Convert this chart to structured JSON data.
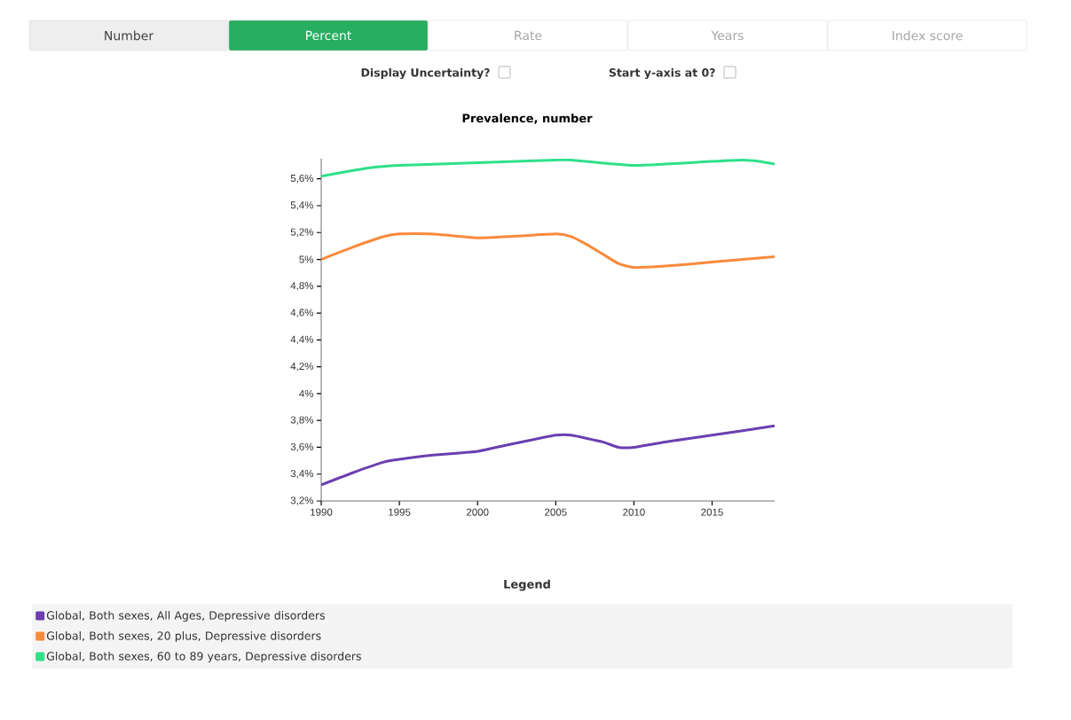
{
  "chart_data": {
    "type": "line",
    "title": "Prevalence, number",
    "legend_title": "Legend",
    "legend": "bottom",
    "annotations": [
      "Number",
      "Percent",
      "Rate",
      "Years",
      "Index score",
      "Display Uncertainty?",
      "Start y-axis at 0?"
    ],
    "xlim": [
      1990,
      2019
    ],
    "ylim": [
      3.2,
      5.75
    ],
    "xticks": [
      1990,
      1995,
      2000,
      2005,
      2010,
      2015
    ],
    "yticks": [
      {
        "value": 3.2,
        "label": "3,2%"
      },
      {
        "value": 3.4,
        "label": "3,4%"
      },
      {
        "value": 3.6,
        "label": "3,6%"
      },
      {
        "value": 3.8,
        "label": "3,8%"
      },
      {
        "value": 4.0,
        "label": "4%"
      },
      {
        "value": 4.2,
        "label": "4,2%"
      },
      {
        "value": 4.4,
        "label": "4,4%"
      },
      {
        "value": 4.6,
        "label": "4,6%"
      },
      {
        "value": 4.8,
        "label": "4,8%"
      },
      {
        "value": 5.0,
        "label": "5%"
      },
      {
        "value": 5.2,
        "label": "5,2%"
      },
      {
        "value": 5.4,
        "label": "5,4%"
      },
      {
        "value": 5.6,
        "label": "5,6%"
      }
    ],
    "series": [
      {
        "name": "Global, Both sexes, All Ages, Depressive disorders",
        "color": "#6a3fb0",
        "x": [
          1990,
          1992,
          1994,
          1995,
          1997,
          2000,
          2002,
          2005,
          2006,
          2008,
          2009,
          2010,
          2012,
          2015,
          2019
        ],
        "values": [
          3.32,
          3.41,
          3.49,
          3.51,
          3.54,
          3.57,
          3.62,
          3.69,
          3.69,
          3.64,
          3.6,
          3.6,
          3.64,
          3.69,
          3.76
        ]
      },
      {
        "name": "Global, Both sexes, 20 plus, Depressive disorders",
        "color": "#f98a3c",
        "x": [
          1990,
          1992,
          1994,
          1995,
          1997,
          1999,
          2000,
          2002,
          2005,
          2006,
          2007,
          2008,
          2009,
          2010,
          2012,
          2015,
          2017,
          2019
        ],
        "values": [
          5.0,
          5.09,
          5.17,
          5.19,
          5.19,
          5.17,
          5.16,
          5.17,
          5.19,
          5.17,
          5.11,
          5.04,
          4.97,
          4.94,
          4.95,
          4.98,
          5.0,
          5.02
        ]
      },
      {
        "name": "Global, Both sexes, 60 to 89 years, Depressive disorders",
        "color": "#2fe08a",
        "x": [
          1990,
          1993,
          1995,
          2000,
          2005,
          2006,
          2010,
          2015,
          2017,
          2018,
          2019
        ],
        "values": [
          5.62,
          5.68,
          5.7,
          5.72,
          5.74,
          5.74,
          5.7,
          5.73,
          5.74,
          5.73,
          5.71
        ]
      }
    ]
  }
}
